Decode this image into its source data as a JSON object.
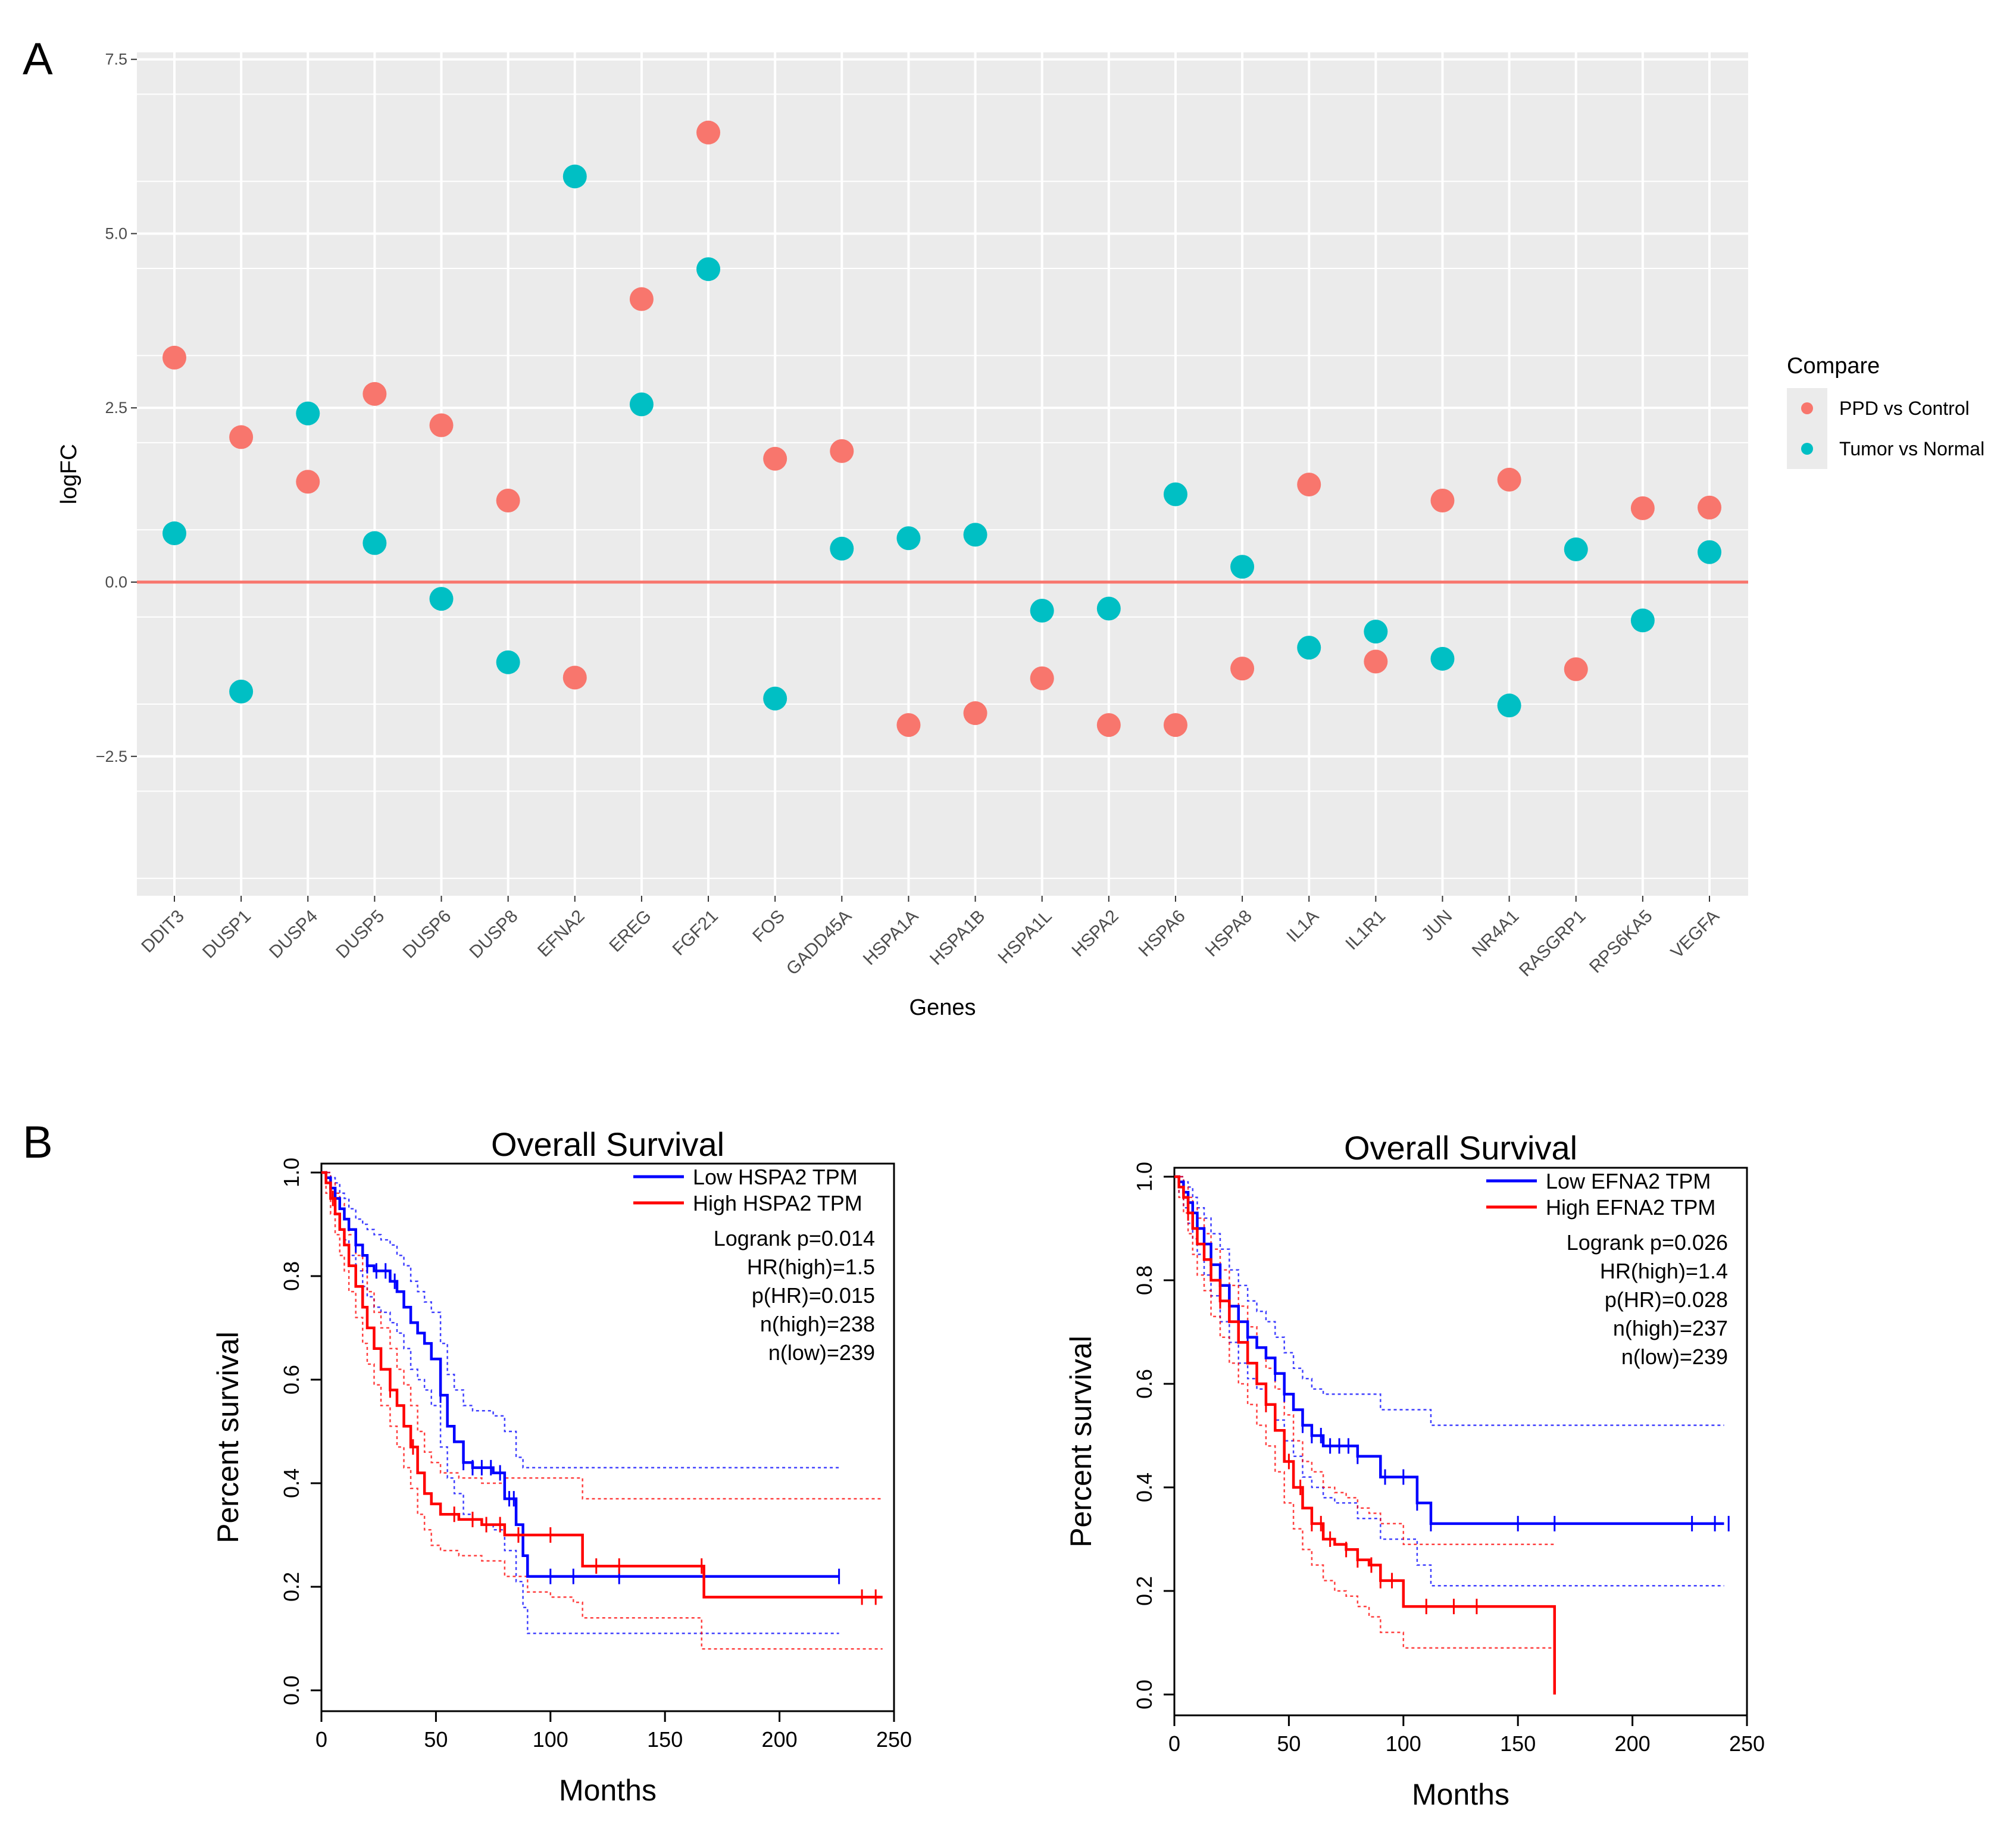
{
  "panels": {
    "a": "A",
    "b": "B"
  },
  "colors": {
    "ppd": "#F8766D",
    "tumor": "#00BFC4",
    "zero_line": "#F8766D",
    "panel_bg": "#EBEBEB",
    "grid": "#FFFFFF",
    "km_low": "#0000FF",
    "km_high": "#FF0000"
  },
  "chart_data": [
    {
      "type": "scatter",
      "title": "",
      "xlabel": "Genes",
      "ylabel": "logFC",
      "ylim": [
        -4.5,
        7.6
      ],
      "yticks": [
        7.5,
        5.0,
        2.5,
        0.0,
        -2.5
      ],
      "ytick_labels": [
        "7.5",
        "5.0",
        "2.5",
        "0.0",
        "−2.5"
      ],
      "categories": [
        "DDIT3",
        "DUSP1",
        "DUSP4",
        "DUSP5",
        "DUSP6",
        "DUSP8",
        "EFNA2",
        "EREG",
        "FGF21",
        "FOS",
        "GADD45A",
        "HSPA1A",
        "HSPA1B",
        "HSPA1L",
        "HSPA2",
        "HSPA6",
        "HSPA8",
        "IL1A",
        "IL1R1",
        "JUN",
        "NR4A1",
        "RASGRP1",
        "RPS6KA5",
        "VEGFA"
      ],
      "legend_title": "Compare",
      "legend_position": "right",
      "reference_line": 0,
      "series": [
        {
          "name": "PPD vs Control",
          "color": "#F8766D",
          "values": [
            3.22,
            2.08,
            1.44,
            2.7,
            2.25,
            1.17,
            -1.37,
            4.06,
            6.45,
            1.77,
            1.88,
            -2.05,
            -1.88,
            -1.38,
            -2.05,
            -2.05,
            -1.24,
            1.4,
            -1.14,
            1.17,
            1.47,
            -1.25,
            1.06,
            1.07
          ]
        },
        {
          "name": "Tumor vs Normal",
          "color": "#00BFC4",
          "values": [
            0.7,
            -1.57,
            2.42,
            0.56,
            -0.24,
            -1.15,
            5.82,
            2.55,
            4.49,
            -1.67,
            0.48,
            0.63,
            0.68,
            -0.41,
            -0.38,
            1.26,
            0.22,
            -0.94,
            -0.71,
            -1.1,
            -1.77,
            0.47,
            -0.55,
            0.43
          ]
        }
      ]
    },
    {
      "type": "line",
      "title": "Overall Survival",
      "xlabel": "Months",
      "ylabel": "Percent survival",
      "xlim": [
        0,
        250
      ],
      "ylim": [
        0,
        1
      ],
      "xticks": [
        0,
        50,
        100,
        150,
        200,
        250
      ],
      "yticks": [
        0.0,
        0.2,
        0.4,
        0.6,
        0.8,
        1.0
      ],
      "legend_position": "top-right",
      "stats": [
        "Logrank p=0.014",
        "HR(high)=1.5",
        "p(HR)=0.015",
        "n(high)=238",
        "n(low)=239"
      ],
      "series": [
        {
          "name": "Low HSPA2 TPM",
          "color": "#0000FF",
          "x": [
            0,
            2,
            4,
            6,
            8,
            10,
            12,
            15,
            18,
            20,
            23,
            26,
            30,
            33,
            36,
            39,
            42,
            45,
            48,
            52,
            55,
            58,
            62,
            66,
            70,
            75,
            80,
            85,
            88,
            90,
            100,
            110,
            120,
            130,
            140,
            160,
            180,
            200,
            226
          ],
          "y": [
            1.0,
            0.99,
            0.97,
            0.95,
            0.93,
            0.91,
            0.89,
            0.86,
            0.84,
            0.82,
            0.81,
            0.81,
            0.79,
            0.77,
            0.74,
            0.71,
            0.69,
            0.67,
            0.64,
            0.57,
            0.51,
            0.48,
            0.44,
            0.43,
            0.43,
            0.42,
            0.37,
            0.32,
            0.26,
            0.22,
            0.22,
            0.22,
            0.22,
            0.22,
            0.22,
            0.22,
            0.22,
            0.22,
            0.22
          ],
          "upper": [
            1.0,
            1.0,
            0.99,
            0.98,
            0.96,
            0.95,
            0.93,
            0.91,
            0.9,
            0.89,
            0.88,
            0.87,
            0.86,
            0.84,
            0.82,
            0.79,
            0.77,
            0.75,
            0.73,
            0.67,
            0.61,
            0.58,
            0.55,
            0.54,
            0.54,
            0.53,
            0.5,
            0.45,
            0.43,
            0.43,
            0.43,
            0.43,
            0.43,
            0.43,
            0.43,
            0.43,
            0.43,
            0.43,
            0.43
          ],
          "lower": [
            1.0,
            0.98,
            0.95,
            0.92,
            0.89,
            0.87,
            0.84,
            0.81,
            0.78,
            0.76,
            0.74,
            0.73,
            0.71,
            0.69,
            0.66,
            0.62,
            0.6,
            0.58,
            0.55,
            0.47,
            0.41,
            0.38,
            0.34,
            0.33,
            0.32,
            0.31,
            0.27,
            0.21,
            0.16,
            0.11,
            0.11,
            0.11,
            0.11,
            0.11,
            0.11,
            0.11,
            0.11,
            0.11,
            0.11
          ],
          "censor_x": [
            15,
            20,
            24,
            28,
            32,
            52,
            62,
            66,
            70,
            74,
            78,
            82,
            84,
            100,
            110,
            130,
            226
          ]
        },
        {
          "name": "High HSPA2 TPM",
          "color": "#FF0000",
          "x": [
            0,
            2,
            4,
            6,
            8,
            10,
            12,
            15,
            18,
            20,
            23,
            26,
            30,
            33,
            36,
            39,
            42,
            45,
            48,
            52,
            60,
            70,
            80,
            90,
            100,
            110,
            114,
            130,
            150,
            166,
            167,
            180,
            200,
            230,
            245
          ],
          "y": [
            1.0,
            0.98,
            0.95,
            0.92,
            0.89,
            0.86,
            0.82,
            0.78,
            0.74,
            0.7,
            0.66,
            0.62,
            0.58,
            0.55,
            0.51,
            0.47,
            0.42,
            0.38,
            0.36,
            0.34,
            0.33,
            0.32,
            0.3,
            0.3,
            0.3,
            0.3,
            0.24,
            0.24,
            0.24,
            0.24,
            0.18,
            0.18,
            0.18,
            0.18,
            0.18
          ],
          "upper": [
            1.0,
            1.0,
            0.98,
            0.96,
            0.94,
            0.91,
            0.88,
            0.84,
            0.81,
            0.77,
            0.73,
            0.7,
            0.66,
            0.62,
            0.59,
            0.55,
            0.5,
            0.46,
            0.44,
            0.42,
            0.41,
            0.4,
            0.41,
            0.41,
            0.41,
            0.41,
            0.37,
            0.37,
            0.37,
            0.37,
            0.37,
            0.37,
            0.37,
            0.37,
            0.37
          ],
          "lower": [
            1.0,
            0.96,
            0.92,
            0.88,
            0.84,
            0.81,
            0.77,
            0.72,
            0.67,
            0.63,
            0.59,
            0.55,
            0.51,
            0.47,
            0.43,
            0.39,
            0.34,
            0.31,
            0.28,
            0.27,
            0.26,
            0.25,
            0.22,
            0.19,
            0.18,
            0.17,
            0.14,
            0.14,
            0.14,
            0.08,
            0.08,
            0.08,
            0.08,
            0.08,
            0.08
          ],
          "censor_x": [
            5,
            30,
            40,
            58,
            66,
            72,
            78,
            86,
            100,
            120,
            130,
            166,
            236,
            242
          ]
        }
      ]
    },
    {
      "type": "line",
      "title": "Overall Survival",
      "xlabel": "Months",
      "ylabel": "Percent survival",
      "xlim": [
        0,
        250
      ],
      "ylim": [
        0,
        1
      ],
      "xticks": [
        0,
        50,
        100,
        150,
        200,
        250
      ],
      "yticks": [
        0.0,
        0.2,
        0.4,
        0.6,
        0.8,
        1.0
      ],
      "legend_position": "top-right",
      "stats": [
        "Logrank p=0.026",
        "HR(high)=1.4",
        "p(HR)=0.028",
        "n(high)=237",
        "n(low)=239"
      ],
      "series": [
        {
          "name": "Low EFNA2 TPM",
          "color": "#0000FF",
          "x": [
            0,
            2,
            4,
            6,
            8,
            10,
            13,
            16,
            20,
            24,
            28,
            32,
            36,
            40,
            44,
            48,
            52,
            56,
            60,
            65,
            70,
            80,
            90,
            100,
            106,
            112,
            130,
            160,
            200,
            240
          ],
          "y": [
            1.0,
            0.99,
            0.97,
            0.95,
            0.93,
            0.9,
            0.87,
            0.83,
            0.79,
            0.75,
            0.72,
            0.69,
            0.67,
            0.65,
            0.62,
            0.58,
            0.55,
            0.52,
            0.5,
            0.48,
            0.48,
            0.46,
            0.42,
            0.42,
            0.37,
            0.33,
            0.33,
            0.33,
            0.33,
            0.33
          ],
          "upper": [
            1.0,
            1.0,
            0.99,
            0.98,
            0.96,
            0.94,
            0.92,
            0.89,
            0.86,
            0.82,
            0.79,
            0.76,
            0.74,
            0.72,
            0.69,
            0.66,
            0.63,
            0.61,
            0.59,
            0.58,
            0.58,
            0.58,
            0.55,
            0.55,
            0.55,
            0.52,
            0.52,
            0.52,
            0.52,
            0.52
          ],
          "lower": [
            1.0,
            0.97,
            0.94,
            0.91,
            0.88,
            0.85,
            0.81,
            0.77,
            0.72,
            0.68,
            0.64,
            0.61,
            0.59,
            0.56,
            0.53,
            0.49,
            0.46,
            0.42,
            0.4,
            0.38,
            0.37,
            0.34,
            0.3,
            0.3,
            0.25,
            0.21,
            0.21,
            0.21,
            0.21,
            0.21
          ],
          "censor_x": [
            10,
            20,
            24,
            28,
            32,
            44,
            48,
            56,
            60,
            64,
            68,
            72,
            76,
            80,
            92,
            100,
            106,
            112,
            150,
            166,
            226,
            236,
            242
          ]
        },
        {
          "name": "High EFNA2 TPM",
          "color": "#FF0000",
          "x": [
            0,
            2,
            4,
            6,
            8,
            10,
            13,
            16,
            20,
            24,
            28,
            32,
            36,
            40,
            44,
            48,
            52,
            56,
            60,
            65,
            70,
            75,
            80,
            85,
            90,
            100,
            110,
            130,
            150,
            166,
            166
          ],
          "y": [
            1.0,
            0.98,
            0.96,
            0.93,
            0.9,
            0.87,
            0.84,
            0.8,
            0.76,
            0.72,
            0.68,
            0.64,
            0.6,
            0.56,
            0.51,
            0.45,
            0.4,
            0.36,
            0.33,
            0.3,
            0.29,
            0.28,
            0.26,
            0.25,
            0.22,
            0.17,
            0.17,
            0.17,
            0.17,
            0.17,
            0.0
          ],
          "upper": [
            1.0,
            1.0,
            0.98,
            0.96,
            0.94,
            0.92,
            0.89,
            0.86,
            0.82,
            0.79,
            0.75,
            0.71,
            0.67,
            0.63,
            0.59,
            0.54,
            0.49,
            0.45,
            0.43,
            0.4,
            0.39,
            0.38,
            0.36,
            0.35,
            0.33,
            0.29,
            0.29,
            0.29,
            0.29,
            0.29,
            0.29
          ],
          "lower": [
            1.0,
            0.96,
            0.93,
            0.89,
            0.85,
            0.81,
            0.78,
            0.73,
            0.69,
            0.64,
            0.6,
            0.56,
            0.52,
            0.48,
            0.43,
            0.37,
            0.32,
            0.28,
            0.25,
            0.22,
            0.2,
            0.19,
            0.17,
            0.15,
            0.12,
            0.09,
            0.09,
            0.09,
            0.09,
            0.09,
            0.09
          ],
          "censor_x": [
            6,
            20,
            40,
            50,
            55,
            60,
            64,
            68,
            75,
            80,
            86,
            90,
            95,
            110,
            122,
            132
          ]
        }
      ]
    }
  ]
}
